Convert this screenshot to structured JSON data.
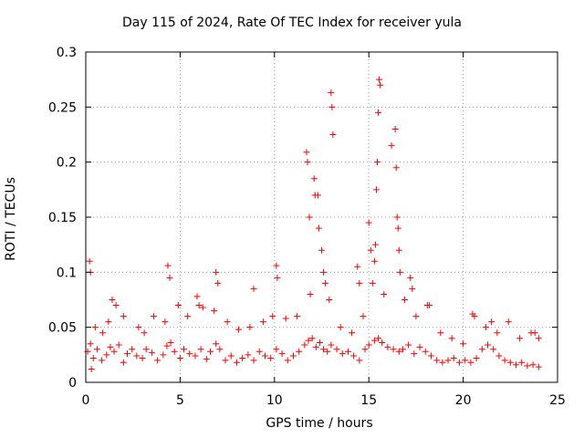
{
  "chart_data": {
    "type": "scatter",
    "title": "Day 115 of 2024, Rate Of TEC Index for receiver yula",
    "xlabel": "GPS time / hours",
    "ylabel": "ROTI / TECUs",
    "xlim": [
      0,
      25
    ],
    "ylim": [
      0,
      0.3
    ],
    "xticks": [
      0,
      5,
      10,
      15,
      20,
      25
    ],
    "yticks": [
      0,
      0.05,
      0.1,
      0.15,
      0.2,
      0.25,
      0.3
    ],
    "xtick_labels": [
      "0",
      "5",
      "10",
      "15",
      "20",
      "25"
    ],
    "ytick_labels": [
      "0",
      "0.05",
      "0.1",
      "0.15",
      "0.2",
      "0.25",
      "0.3"
    ],
    "grid": true,
    "marker": "+",
    "series": [
      {
        "name": "ROTI",
        "color": "#ff0000",
        "x": [
          0.1,
          0.25,
          0.4,
          0.6,
          0.85,
          1.1,
          1.3,
          1.5,
          1.75,
          2.0,
          2.2,
          2.45,
          2.7,
          3.0,
          3.2,
          3.5,
          3.8,
          4.1,
          4.3,
          4.5,
          4.7,
          5.0,
          5.2,
          5.5,
          5.8,
          6.1,
          6.4,
          6.6,
          6.9,
          7.1,
          7.4,
          7.7,
          8.0,
          8.3,
          8.6,
          8.9,
          9.2,
          9.5,
          9.8,
          10.1,
          10.4,
          10.7,
          11.0,
          11.3,
          11.6,
          11.8,
          12.0,
          12.2,
          12.4,
          12.6,
          12.8,
          13.0,
          13.3,
          13.6,
          13.9,
          14.2,
          14.5,
          14.8,
          15.0,
          15.3,
          15.5,
          15.7,
          16.0,
          16.3,
          16.6,
          16.8,
          17.1,
          17.4,
          17.7,
          18.0,
          18.3,
          18.6,
          18.9,
          19.2,
          19.5,
          19.8,
          20.1,
          20.4,
          20.7,
          21.0,
          21.3,
          21.6,
          21.9,
          22.2,
          22.5,
          22.8,
          23.1,
          23.4,
          23.7,
          24.0,
          0.2,
          0.25,
          1.4,
          1.6,
          4.35,
          4.45,
          5.9,
          6.0,
          6.9,
          7.0,
          8.9,
          10.1,
          10.15,
          11.7,
          11.75,
          11.85,
          12.1,
          12.15,
          12.3,
          12.35,
          12.5,
          12.6,
          12.7,
          13.0,
          13.05,
          13.1,
          14.4,
          14.5,
          15.0,
          15.1,
          15.3,
          15.35,
          15.4,
          15.45,
          15.5,
          15.55,
          15.6,
          16.2,
          16.4,
          16.45,
          16.5,
          16.55,
          16.6,
          16.65,
          17.2,
          17.3,
          18.1,
          20.5,
          21.5,
          23.8,
          0.3,
          0.5,
          0.9,
          1.2,
          2.0,
          2.8,
          3.1,
          3.6,
          4.2,
          4.9,
          5.4,
          6.2,
          6.8,
          7.5,
          8.1,
          8.7,
          9.4,
          9.9,
          10.6,
          11.2,
          11.9,
          12.9,
          13.5,
          14.1,
          14.7,
          15.2,
          15.8,
          16.9,
          17.5,
          18.2,
          18.8,
          19.4,
          20.0,
          20.6,
          21.2,
          21.8,
          22.4,
          23.0,
          23.6,
          24.0
        ],
        "y": [
          0.028,
          0.035,
          0.022,
          0.03,
          0.02,
          0.025,
          0.032,
          0.028,
          0.034,
          0.018,
          0.026,
          0.03,
          0.024,
          0.022,
          0.03,
          0.027,
          0.02,
          0.025,
          0.033,
          0.036,
          0.028,
          0.022,
          0.03,
          0.026,
          0.024,
          0.03,
          0.021,
          0.028,
          0.035,
          0.03,
          0.02,
          0.024,
          0.018,
          0.022,
          0.025,
          0.02,
          0.028,
          0.024,
          0.022,
          0.03,
          0.026,
          0.02,
          0.024,
          0.028,
          0.034,
          0.038,
          0.04,
          0.032,
          0.036,
          0.03,
          0.028,
          0.034,
          0.03,
          0.026,
          0.028,
          0.024,
          0.02,
          0.03,
          0.034,
          0.038,
          0.04,
          0.036,
          0.032,
          0.03,
          0.028,
          0.03,
          0.034,
          0.026,
          0.032,
          0.028,
          0.024,
          0.02,
          0.018,
          0.02,
          0.022,
          0.018,
          0.02,
          0.018,
          0.022,
          0.03,
          0.034,
          0.03,
          0.024,
          0.02,
          0.018,
          0.016,
          0.018,
          0.015,
          0.016,
          0.014,
          0.11,
          0.1,
          0.075,
          0.07,
          0.106,
          0.095,
          0.078,
          0.07,
          0.1,
          0.09,
          0.085,
          0.106,
          0.095,
          0.209,
          0.2,
          0.15,
          0.185,
          0.17,
          0.17,
          0.14,
          0.12,
          0.1,
          0.09,
          0.263,
          0.25,
          0.225,
          0.105,
          0.09,
          0.145,
          0.12,
          0.11,
          0.125,
          0.175,
          0.2,
          0.245,
          0.275,
          0.27,
          0.215,
          0.23,
          0.195,
          0.15,
          0.14,
          0.12,
          0.1,
          0.095,
          0.085,
          0.07,
          0.062,
          0.055,
          0.045,
          0.012,
          0.05,
          0.045,
          0.055,
          0.06,
          0.05,
          0.045,
          0.06,
          0.055,
          0.07,
          0.06,
          0.068,
          0.065,
          0.055,
          0.048,
          0.05,
          0.055,
          0.06,
          0.058,
          0.06,
          0.08,
          0.075,
          0.05,
          0.045,
          0.06,
          0.09,
          0.08,
          0.075,
          0.06,
          0.07,
          0.045,
          0.04,
          0.035,
          0.06,
          0.05,
          0.045,
          0.055,
          0.04,
          0.045,
          0.04
        ]
      }
    ]
  }
}
